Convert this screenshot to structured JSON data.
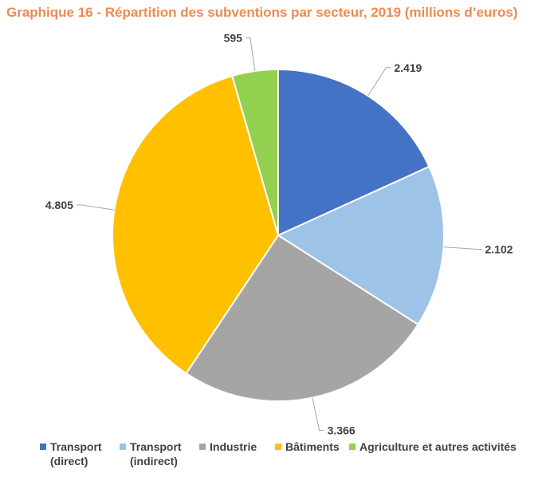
{
  "title": "Graphique 16 - Répartition des subventions par secteur, 2019 (millions d’euros)",
  "chart_data": {
    "type": "pie",
    "title": "Graphique 16 - Répartition des subventions par secteur, 2019 (millions d’euros)",
    "categories": [
      "Transport\n(direct)",
      "Transport\n(indirect)",
      "Industrie",
      "Bâtiments",
      "Agriculture et autres activités"
    ],
    "values": [
      2419,
      2102,
      3366,
      4805,
      595
    ],
    "value_labels": [
      "2.419",
      "2.102",
      "3.366",
      "4.805",
      "595"
    ],
    "colors": [
      "#4472C4",
      "#9DC3E6",
      "#A5A5A5",
      "#FFC000",
      "#92D050"
    ],
    "legend_position": "bottom",
    "start_angle": "top",
    "direction": "clockwise"
  }
}
